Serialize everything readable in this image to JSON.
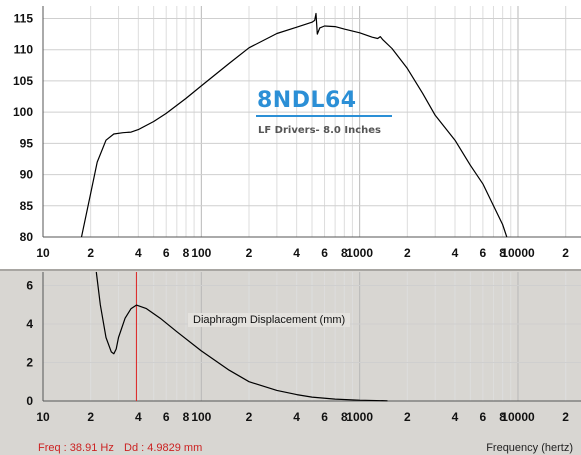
{
  "brand": {
    "model": "8NDL64",
    "subtitle": "LF Drivers- 8.0 Inches"
  },
  "readout": {
    "freq": "Freq : 38.91 Hz",
    "displacement": "Dd : 4.9829 mm"
  },
  "x_axis_label": "Frequency (hertz)",
  "colors": {
    "cursor": "#dd2222",
    "curve": "#000000",
    "grid": "#cccccc",
    "bottom_bg": "#d8d6d2",
    "brand": "#2b8fd6"
  },
  "chart_data": [
    {
      "type": "line",
      "scale_x": "log",
      "xlim": [
        10,
        25000
      ],
      "ylim": [
        80,
        117
      ],
      "grid": true,
      "x_tick_labels": [
        "10",
        "2",
        "4",
        "6",
        "8",
        "100",
        "2",
        "4",
        "6",
        "8",
        "1000",
        "2",
        "4",
        "6",
        "8",
        "10000",
        "2"
      ],
      "y_tick_labels": [
        "115",
        "110",
        "105",
        "100",
        "95",
        "90",
        "85",
        "80"
      ],
      "series": [
        {
          "x": [
            17.5,
            20,
            22,
            25,
            28,
            32,
            36,
            40,
            50,
            60,
            80,
            100,
            150,
            200,
            300,
            400,
            500,
            520,
            530,
            540,
            560,
            600,
            700,
            800,
            1000,
            1200,
            1300,
            1350,
            1400,
            1600,
            2000,
            2500,
            3000,
            4000,
            5000,
            6000,
            7000,
            8000,
            8500
          ],
          "y": [
            80,
            87,
            92,
            95.5,
            96.5,
            96.7,
            96.8,
            97.2,
            98.5,
            99.8,
            102.2,
            104.2,
            107.8,
            110.3,
            112.6,
            113.6,
            114.4,
            114.7,
            115.8,
            112.5,
            113.5,
            113.8,
            113.7,
            113.3,
            112.7,
            112,
            111.8,
            112.1,
            111.6,
            110.2,
            107,
            103,
            99.5,
            95.5,
            91.5,
            88.5,
            85,
            82,
            80
          ]
        }
      ]
    },
    {
      "type": "line",
      "scale_x": "log",
      "xlim": [
        10,
        25000
      ],
      "ylim": [
        0,
        6.7
      ],
      "grid": true,
      "title": "Diaphragm Displacement (mm)",
      "x_tick_labels": [
        "10",
        "2",
        "4",
        "6",
        "8",
        "100",
        "2",
        "4",
        "6",
        "8",
        "1000",
        "2",
        "4",
        "6",
        "8",
        "10000",
        "2"
      ],
      "y_tick_labels": [
        "6",
        "4",
        "2",
        "0"
      ],
      "cursor_x": 38.91,
      "series": [
        {
          "x": [
            21.7,
            23,
            25,
            27,
            28,
            29,
            30,
            33,
            36,
            38.91,
            45,
            55,
            70,
            100,
            150,
            200,
            300,
            400,
            500,
            700,
            1000,
            1500
          ],
          "y": [
            6.7,
            5,
            3.3,
            2.55,
            2.45,
            2.7,
            3.3,
            4.3,
            4.8,
            4.98,
            4.8,
            4.3,
            3.6,
            2.6,
            1.6,
            1.0,
            0.55,
            0.33,
            0.2,
            0.1,
            0.04,
            0.01
          ]
        }
      ]
    }
  ]
}
